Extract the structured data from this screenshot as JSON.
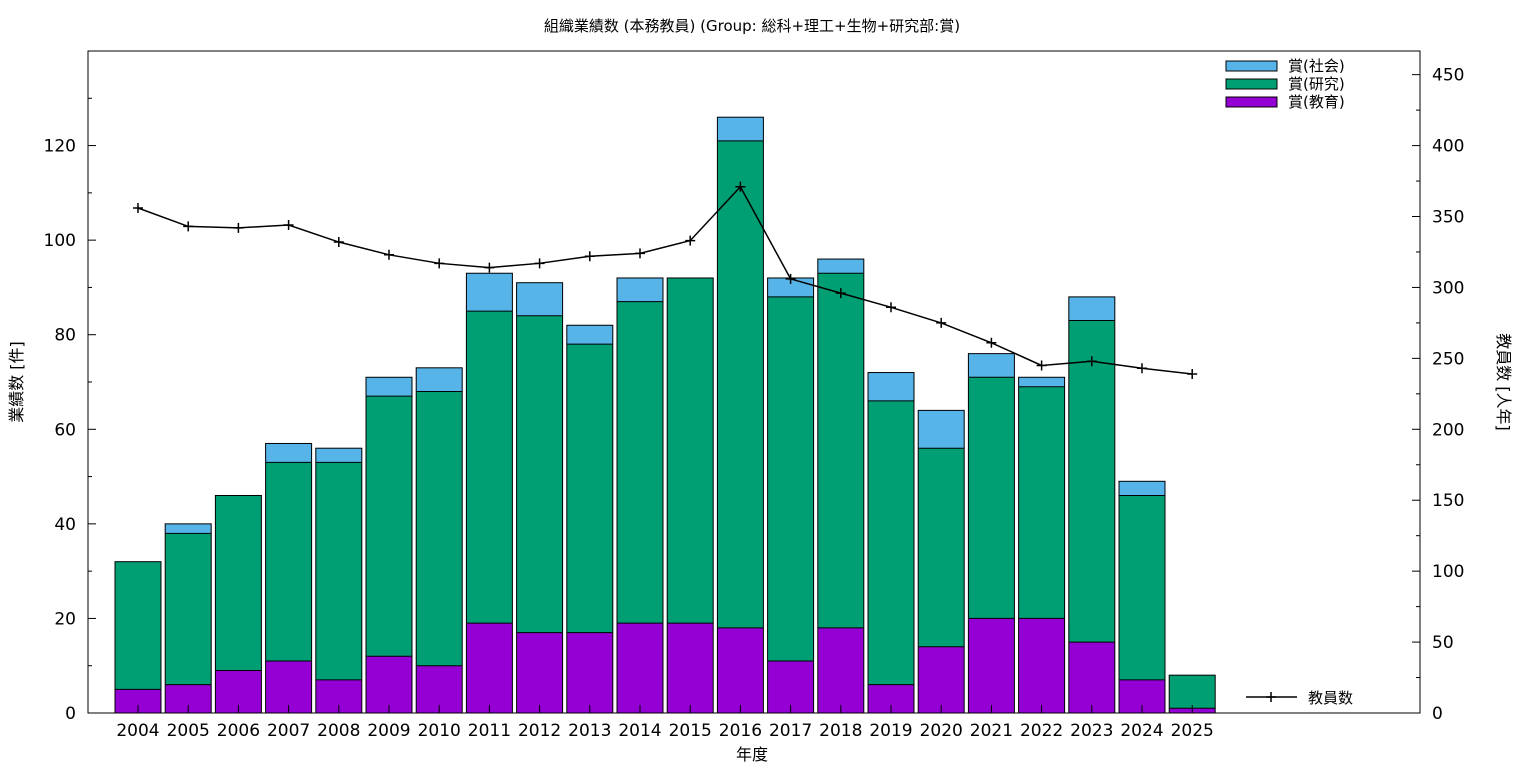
{
  "chart_data": {
    "type": "bar",
    "stacked": true,
    "title": "組織業績数 (本務教員) (Group: 総科+理工+生物+研究部:賞)",
    "xlabel": "年度",
    "ylabel": "業績数 [件]",
    "y2label": "教員数 [人年]",
    "ylim": [
      0,
      140
    ],
    "y2lim": [
      0,
      466.67
    ],
    "yticks": [
      0,
      20,
      40,
      60,
      80,
      100,
      120
    ],
    "y2ticks": [
      0,
      50,
      100,
      150,
      200,
      250,
      300,
      350,
      400,
      450
    ],
    "grid": false,
    "legend_position": "top-right",
    "categories": [
      "2004",
      "2005",
      "2006",
      "2007",
      "2008",
      "2009",
      "2010",
      "2011",
      "2012",
      "2013",
      "2014",
      "2015",
      "2016",
      "2017",
      "2018",
      "2019",
      "2020",
      "2021",
      "2022",
      "2023",
      "2024",
      "2025"
    ],
    "series": [
      {
        "name": "賞(教育)",
        "color": "#9400d3",
        "values": [
          5,
          6,
          9,
          11,
          7,
          12,
          10,
          19,
          17,
          17,
          19,
          19,
          18,
          11,
          18,
          6,
          14,
          20,
          20,
          15,
          7,
          1
        ]
      },
      {
        "name": "賞(研究)",
        "color": "#009e73",
        "values": [
          27,
          32,
          37,
          42,
          46,
          55,
          58,
          66,
          67,
          61,
          68,
          73,
          103,
          77,
          75,
          60,
          42,
          51,
          49,
          68,
          39,
          7
        ]
      },
      {
        "name": "賞(社会)",
        "color": "#56b4e9",
        "values": [
          0,
          2,
          0,
          4,
          3,
          4,
          5,
          8,
          7,
          4,
          5,
          0,
          5,
          4,
          3,
          6,
          8,
          5,
          2,
          5,
          3,
          0
        ]
      }
    ],
    "line_series": {
      "name": "教員数",
      "color": "#000000",
      "axis": "right",
      "values": [
        356,
        343,
        342,
        344,
        332,
        323,
        317,
        314,
        317,
        322,
        324,
        333,
        371,
        306,
        296,
        286,
        275,
        261,
        245,
        248,
        243,
        239
      ]
    }
  }
}
